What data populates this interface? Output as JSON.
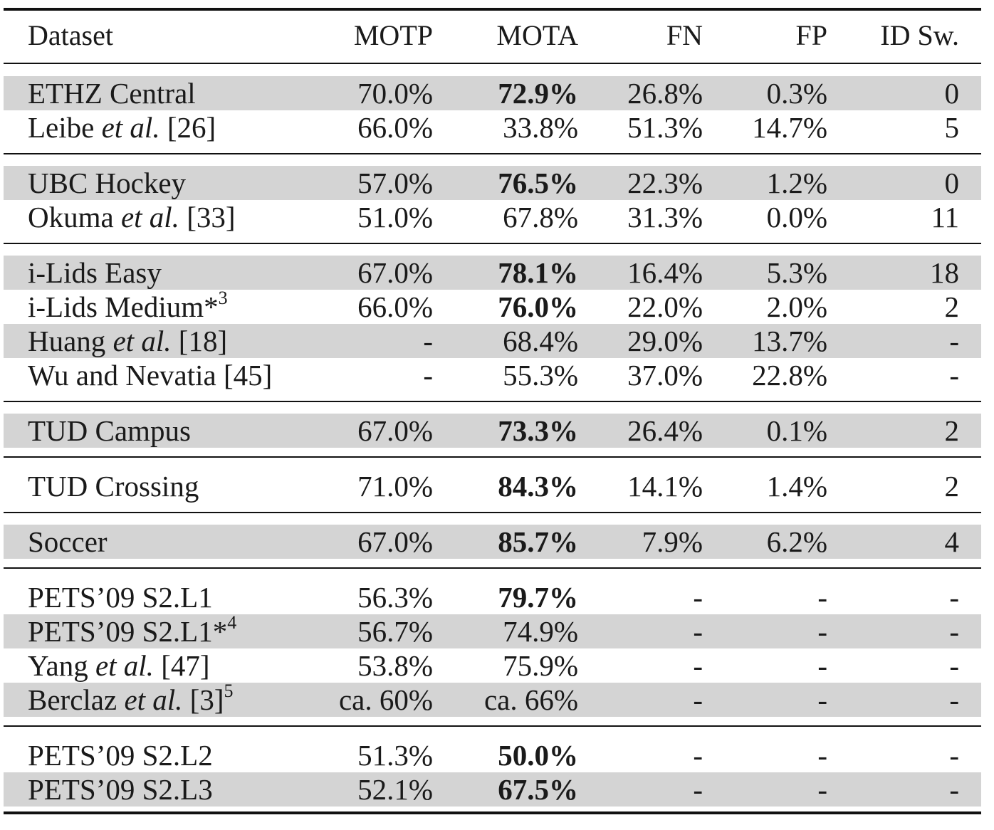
{
  "table": {
    "headers": [
      "Dataset",
      "MOTP",
      "MOTA",
      "FN",
      "FP",
      "ID Sw."
    ],
    "groups": [
      [
        {
          "dataset": {
            "pre": "ETHZ Central",
            "em": "",
            "post": "",
            "sup": ""
          },
          "motp": "70.0%",
          "mota": "72.9%",
          "mota_bold": true,
          "fn": "26.8%",
          "fp": "0.3%",
          "idsw": "0",
          "shaded": true
        },
        {
          "dataset": {
            "pre": "Leibe ",
            "em": "et al.",
            "post": " [26]",
            "sup": ""
          },
          "motp": "66.0%",
          "mota": "33.8%",
          "mota_bold": false,
          "fn": "51.3%",
          "fp": "14.7%",
          "idsw": "5",
          "shaded": false
        }
      ],
      [
        {
          "dataset": {
            "pre": "UBC Hockey",
            "em": "",
            "post": "",
            "sup": ""
          },
          "motp": "57.0%",
          "mota": "76.5%",
          "mota_bold": true,
          "fn": "22.3%",
          "fp": "1.2%",
          "idsw": "0",
          "shaded": true
        },
        {
          "dataset": {
            "pre": "Okuma ",
            "em": "et al.",
            "post": " [33]",
            "sup": ""
          },
          "motp": "51.0%",
          "mota": "67.8%",
          "mota_bold": false,
          "fn": "31.3%",
          "fp": "0.0%",
          "idsw": "11",
          "shaded": false
        }
      ],
      [
        {
          "dataset": {
            "pre": "i-Lids Easy",
            "em": "",
            "post": "",
            "sup": ""
          },
          "motp": "67.0%",
          "mota": "78.1%",
          "mota_bold": true,
          "fn": "16.4%",
          "fp": "5.3%",
          "idsw": "18",
          "shaded": true
        },
        {
          "dataset": {
            "pre": "i-Lids Medium*",
            "em": "",
            "post": "",
            "sup": "3"
          },
          "motp": "66.0%",
          "mota": "76.0%",
          "mota_bold": true,
          "fn": "22.0%",
          "fp": "2.0%",
          "idsw": "2",
          "shaded": false
        },
        {
          "dataset": {
            "pre": "Huang ",
            "em": "et al.",
            "post": " [18]",
            "sup": ""
          },
          "motp": "-",
          "mota": "68.4%",
          "mota_bold": false,
          "fn": "29.0%",
          "fp": "13.7%",
          "idsw": "-",
          "shaded": true
        },
        {
          "dataset": {
            "pre": "Wu and Nevatia [45]",
            "em": "",
            "post": "",
            "sup": ""
          },
          "motp": "-",
          "mota": "55.3%",
          "mota_bold": false,
          "fn": "37.0%",
          "fp": "22.8%",
          "idsw": "-",
          "shaded": false
        }
      ],
      [
        {
          "dataset": {
            "pre": "TUD Campus",
            "em": "",
            "post": "",
            "sup": ""
          },
          "motp": "67.0%",
          "mota": "73.3%",
          "mota_bold": true,
          "fn": "26.4%",
          "fp": "0.1%",
          "idsw": "2",
          "shaded": true
        }
      ],
      [
        {
          "dataset": {
            "pre": "TUD Crossing",
            "em": "",
            "post": "",
            "sup": ""
          },
          "motp": "71.0%",
          "mota": "84.3%",
          "mota_bold": true,
          "fn": "14.1%",
          "fp": "1.4%",
          "idsw": "2",
          "shaded": false
        }
      ],
      [
        {
          "dataset": {
            "pre": "Soccer",
            "em": "",
            "post": "",
            "sup": ""
          },
          "motp": "67.0%",
          "mota": "85.7%",
          "mota_bold": true,
          "fn": "7.9%",
          "fp": "6.2%",
          "idsw": "4",
          "shaded": true
        }
      ],
      [
        {
          "dataset": {
            "pre": "PETS’09 S2.L1",
            "em": "",
            "post": "",
            "sup": ""
          },
          "motp": "56.3%",
          "mota": "79.7%",
          "mota_bold": true,
          "fn": "-",
          "fp": "-",
          "idsw": "-",
          "shaded": false
        },
        {
          "dataset": {
            "pre": "PETS’09 S2.L1*",
            "em": "",
            "post": "",
            "sup": "4"
          },
          "motp": "56.7%",
          "mota": "74.9%",
          "mota_bold": false,
          "fn": "-",
          "fp": "-",
          "idsw": "-",
          "shaded": true
        },
        {
          "dataset": {
            "pre": "Yang ",
            "em": "et al.",
            "post": " [47]",
            "sup": ""
          },
          "motp": "53.8%",
          "mota": "75.9%",
          "mota_bold": false,
          "fn": "-",
          "fp": "-",
          "idsw": "-",
          "shaded": false
        },
        {
          "dataset": {
            "pre": "Berclaz ",
            "em": "et al.",
            "post": " [3]",
            "sup": "5"
          },
          "motp": "ca. 60%",
          "mota": "ca. 66%",
          "mota_bold": false,
          "fn": "-",
          "fp": "-",
          "idsw": "-",
          "shaded": true
        }
      ],
      [
        {
          "dataset": {
            "pre": "PETS’09 S2.L2",
            "em": "",
            "post": "",
            "sup": ""
          },
          "motp": "51.3%",
          "mota": "50.0%",
          "mota_bold": true,
          "fn": "-",
          "fp": "-",
          "idsw": "-",
          "shaded": false
        },
        {
          "dataset": {
            "pre": "PETS’09 S2.L3",
            "em": "",
            "post": "",
            "sup": ""
          },
          "motp": "52.1%",
          "mota": "67.5%",
          "mota_bold": true,
          "fn": "-",
          "fp": "-",
          "idsw": "-",
          "shaded": true
        }
      ]
    ]
  }
}
